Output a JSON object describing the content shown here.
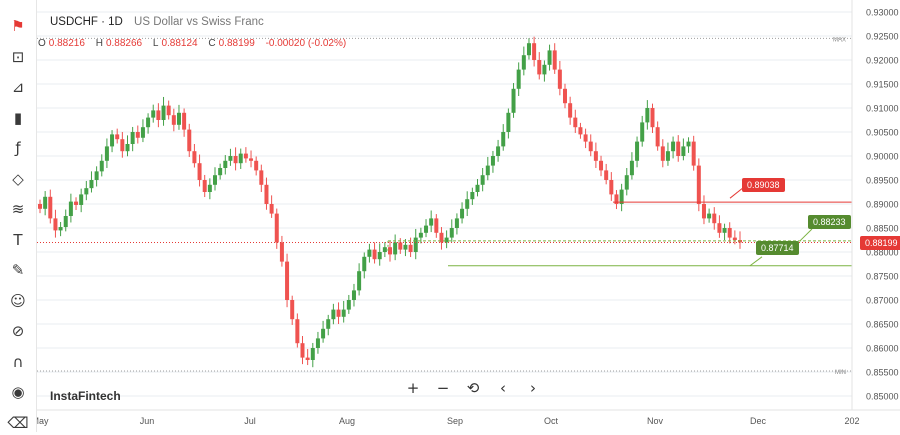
{
  "header": {
    "symbol": "USDCHF · 1D",
    "name": "US Dollar vs Swiss Franc"
  },
  "ohlc": {
    "o_label": "O",
    "o": "0.88216",
    "h_label": "H",
    "h": "0.88266",
    "l_label": "L",
    "l": "0.88124",
    "c_label": "C",
    "c": "0.88199",
    "change": "-0.00020 (-0.02%)"
  },
  "watermark": "InstaFintech",
  "toolbar": {
    "icons": [
      "flag-icon",
      "expand-icon",
      "cursor-icon",
      "candles-icon",
      "fx-icon",
      "shape-icon",
      "fib-icon",
      "text-icon",
      "brush-icon",
      "smiley-icon",
      "ruler-icon",
      "magnet-icon",
      "eye-icon",
      "trash-icon"
    ]
  },
  "navigation": {
    "zoom_in": "+",
    "zoom_out": "−",
    "reset": "⟲",
    "back": "‹",
    "forward": "›"
  },
  "chart_data": {
    "type": "candlestick",
    "y_axis": {
      "min": 0.85,
      "max": 0.93,
      "step": 0.005,
      "tick_labels": [
        "0.93000",
        "0.92500",
        "0.92000",
        "0.91500",
        "0.91000",
        "0.90500",
        "0.90000",
        "0.89500",
        "0.89000",
        "0.88500",
        "0.88000",
        "0.87500",
        "0.87000",
        "0.86500",
        "0.86000",
        "0.85500",
        "0.85000"
      ]
    },
    "x_axis": {
      "labels": [
        "May",
        "Jun",
        "Jul",
        "Aug",
        "Sep",
        "Oct",
        "Nov",
        "Dec",
        "202"
      ]
    },
    "colors": {
      "up": "#43a047",
      "down": "#ef5350",
      "resistance": "#e53935",
      "support": "#7cb342",
      "current": "#e53935",
      "grid": "#e8ecf0"
    },
    "markers": {
      "max_label": "MAX",
      "max_value": 0.9245,
      "min_label": "MIN",
      "min_value": 0.8552
    },
    "current_price": {
      "value": 0.88199,
      "label": "0.88199"
    },
    "levels": [
      {
        "name": "resistance",
        "value": 0.89038,
        "label": "0.89038"
      },
      {
        "name": "pivot",
        "value": 0.88233,
        "label": "0.88233"
      },
      {
        "name": "support",
        "value": 0.87714,
        "label": "0.87714"
      }
    ],
    "closes": [
      0.889,
      0.8915,
      0.887,
      0.8845,
      0.8852,
      0.8875,
      0.8905,
      0.8898,
      0.892,
      0.8933,
      0.895,
      0.8968,
      0.899,
      0.902,
      0.9045,
      0.9035,
      0.901,
      0.9025,
      0.905,
      0.9038,
      0.906,
      0.908,
      0.9095,
      0.9075,
      0.9105,
      0.9085,
      0.9065,
      0.909,
      0.9055,
      0.901,
      0.8985,
      0.895,
      0.8925,
      0.894,
      0.896,
      0.8975,
      0.899,
      0.9,
      0.8985,
      0.9005,
      0.8995,
      0.899,
      0.897,
      0.894,
      0.89,
      0.888,
      0.882,
      0.878,
      0.87,
      0.866,
      0.861,
      0.858,
      0.8575,
      0.86,
      0.862,
      0.864,
      0.866,
      0.868,
      0.8665,
      0.868,
      0.87,
      0.872,
      0.876,
      0.879,
      0.8805,
      0.8785,
      0.88,
      0.881,
      0.8795,
      0.882,
      0.8805,
      0.8815,
      0.88,
      0.883,
      0.884,
      0.8855,
      0.887,
      0.884,
      0.882,
      0.883,
      0.885,
      0.887,
      0.889,
      0.891,
      0.8925,
      0.894,
      0.896,
      0.898,
      0.9,
      0.902,
      0.905,
      0.909,
      0.914,
      0.918,
      0.921,
      0.9235,
      0.92,
      0.917,
      0.919,
      0.922,
      0.918,
      0.914,
      0.911,
      0.908,
      0.906,
      0.9045,
      0.903,
      0.901,
      0.899,
      0.897,
      0.895,
      0.892,
      0.89,
      0.893,
      0.896,
      0.899,
      0.903,
      0.907,
      0.91,
      0.906,
      0.902,
      0.899,
      0.901,
      0.903,
      0.9,
      0.902,
      0.903,
      0.898,
      0.89,
      0.887,
      0.888,
      0.886,
      0.884,
      0.885,
      0.883,
      0.8825,
      0.882
    ]
  }
}
